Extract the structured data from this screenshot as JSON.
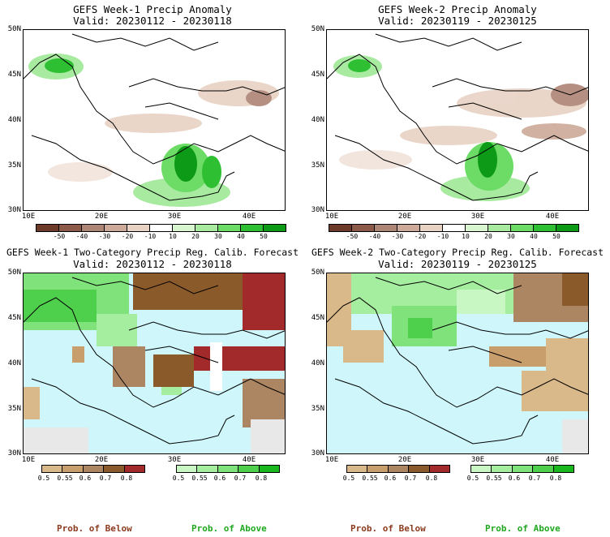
{
  "panels": {
    "p1": {
      "title1": "GEFS Week-1 Precip Anomaly",
      "title2": "Valid: 20230112 - 20230118"
    },
    "p2": {
      "title1": "GEFS Week-2 Precip Anomaly",
      "title2": "Valid: 20230119 - 20230125"
    },
    "p3": {
      "title1": "GEFS Week-1 Two-Category Precip Reg. Calib. Forecast",
      "title2": "Valid: 20230112 - 20230118"
    },
    "p4": {
      "title1": "GEFS Week-2 Two-Category Precip Reg. Calib. Forecast",
      "title2": "Valid: 20230119 - 20230125"
    }
  },
  "lat_labels": [
    "50N",
    "45N",
    "40N",
    "35N",
    "30N"
  ],
  "lon_labels": [
    "10E",
    "20E",
    "30E",
    "40E"
  ],
  "anomaly_colorbar": {
    "labels": [
      "-50",
      "-40",
      "-30",
      "-20",
      "-10",
      "10",
      "20",
      "30",
      "40",
      "50"
    ],
    "colors": [
      "#6e3a2a",
      "#8c5a48",
      "#ad8575",
      "#cca998",
      "#e8d2c4",
      "#ffffff",
      "#d8f5d0",
      "#a8eba0",
      "#6cdc66",
      "#2fbf33",
      "#0d9a16"
    ]
  },
  "below_colorbar": {
    "labels": [
      "0.5",
      "0.55",
      "0.6",
      "0.7",
      "0.8"
    ],
    "colors": [
      "#d9b889",
      "#c79e6c",
      "#ac8662",
      "#8b5a2b",
      "#a32a2a"
    ]
  },
  "above_colorbar": {
    "labels": [
      "0.5",
      "0.55",
      "0.6",
      "0.7",
      "0.8"
    ],
    "colors": [
      "#c8f7c3",
      "#a6ee9f",
      "#80e27a",
      "#4fd04d",
      "#1ab81f"
    ]
  },
  "legend": {
    "below": "Prob. of Below",
    "above": "Prob. of Above"
  },
  "colors": {
    "sea": "#cff7fb",
    "below_text": "#8b3a1e",
    "above_text": "#1fa81f"
  }
}
